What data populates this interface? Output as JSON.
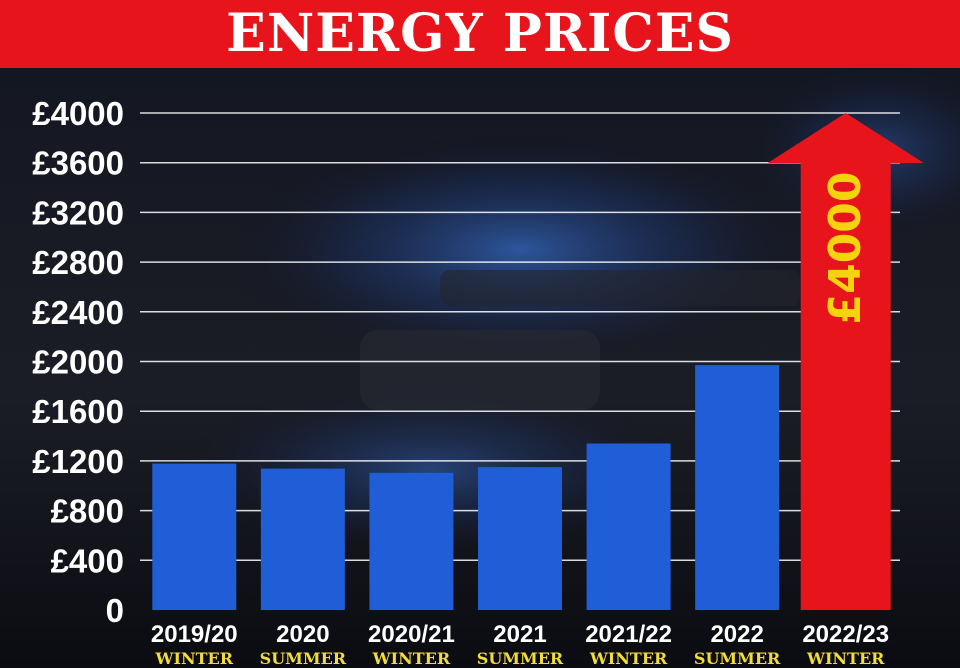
{
  "header": {
    "title": "ENERGY PRICES"
  },
  "colors": {
    "title_band": "#e8141c",
    "bar": "#1f5ed6",
    "highlight_arrow": "#e8141c",
    "highlight_text": "#f5d40f",
    "axis_text": "#ffffff",
    "season_text": "#f2dc3a"
  },
  "chart_data": {
    "type": "bar",
    "title": "ENERGY PRICES",
    "xlabel": "",
    "ylabel": "",
    "ylim": [
      0,
      4000
    ],
    "yticks": [
      0,
      400,
      800,
      1200,
      1600,
      2000,
      2400,
      2800,
      3200,
      3600,
      4000
    ],
    "ytick_labels": [
      "0",
      "£400",
      "£800",
      "£1200",
      "£1600",
      "£2000",
      "£2400",
      "£2800",
      "£3200",
      "£3600",
      "£4000"
    ],
    "grid": true,
    "legend": "none",
    "categories": [
      {
        "period": "2019/20",
        "season": "WINTER"
      },
      {
        "period": "2020",
        "season": "SUMMER"
      },
      {
        "period": "2020/21",
        "season": "WINTER"
      },
      {
        "period": "2021",
        "season": "SUMMER"
      },
      {
        "period": "2021/22",
        "season": "WINTER"
      },
      {
        "period": "2022",
        "season": "SUMMER"
      },
      {
        "period": "2022/23",
        "season": "WINTER"
      }
    ],
    "values": [
      1179,
      1138,
      1104,
      1150,
      1340,
      1971,
      4000
    ],
    "highlight": {
      "index": 6,
      "shape": "arrow",
      "label": "£4000"
    }
  }
}
